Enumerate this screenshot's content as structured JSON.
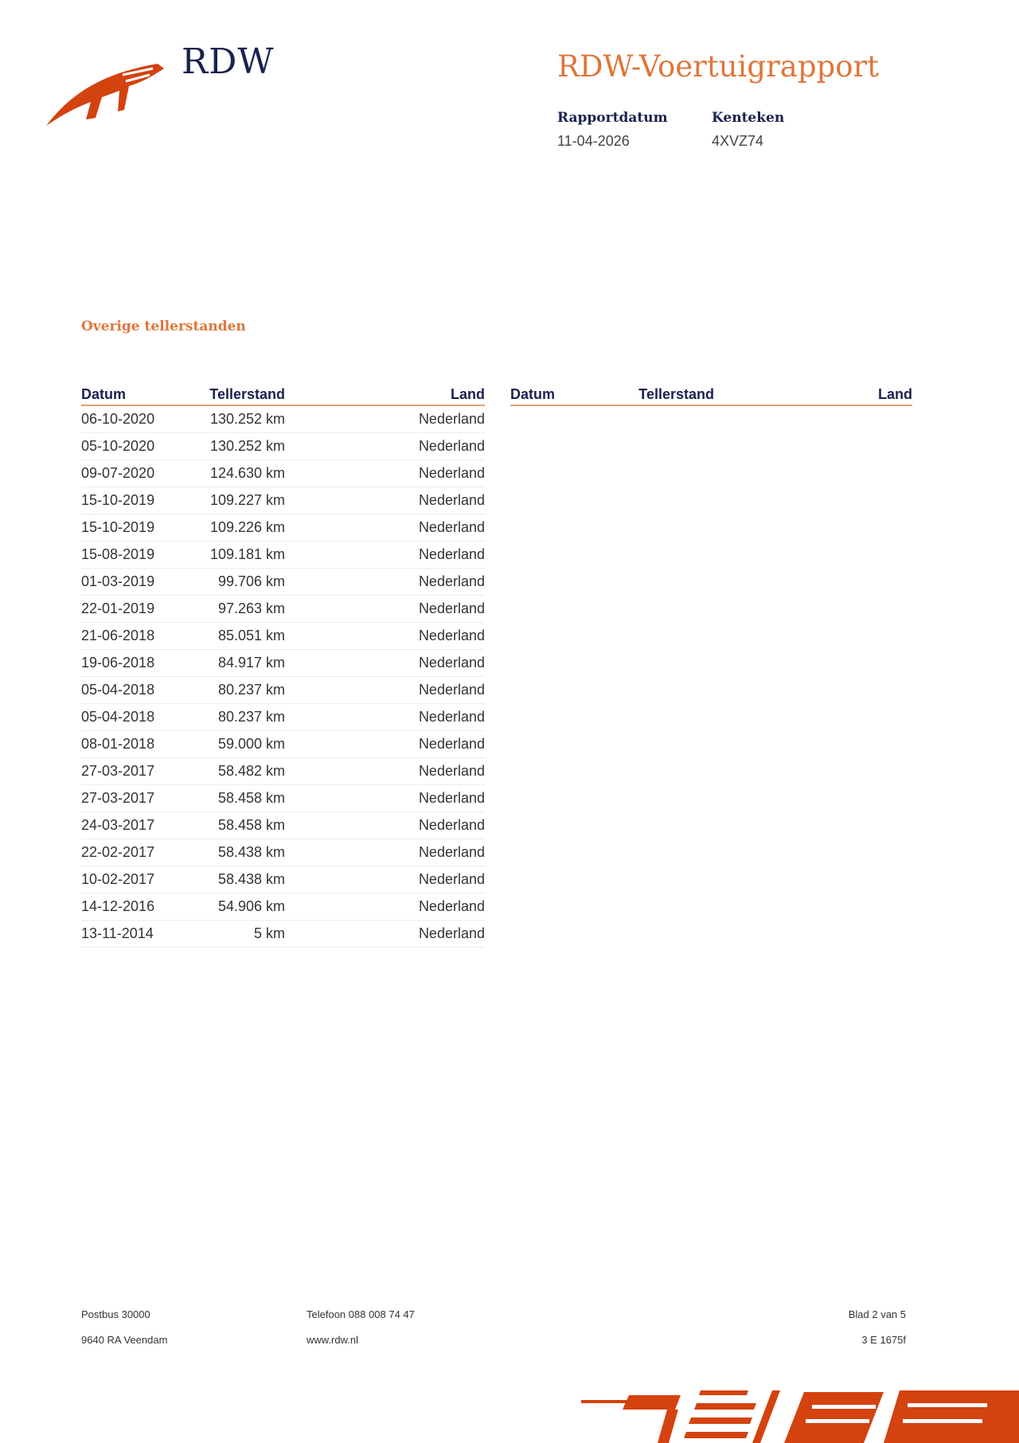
{
  "header": {
    "logo_text": "RDW",
    "title": "RDW-Voertuigrapport",
    "meta": [
      {
        "label": "Rapportdatum",
        "value": "11-04-2026"
      },
      {
        "label": "Kenteken",
        "value": "4XVZ74"
      }
    ]
  },
  "section_title": "Overige tellerstanden",
  "columns": [
    "Datum",
    "Tellerstand",
    "Land"
  ],
  "rows": [
    [
      "06-10-2020",
      "130.252 km",
      "Nederland"
    ],
    [
      "05-10-2020",
      "130.252 km",
      "Nederland"
    ],
    [
      "09-07-2020",
      "124.630 km",
      "Nederland"
    ],
    [
      "15-10-2019",
      "109.227 km",
      "Nederland"
    ],
    [
      "15-10-2019",
      "109.226 km",
      "Nederland"
    ],
    [
      "15-08-2019",
      "109.181 km",
      "Nederland"
    ],
    [
      "01-03-2019",
      "99.706 km",
      "Nederland"
    ],
    [
      "22-01-2019",
      "97.263 km",
      "Nederland"
    ],
    [
      "21-06-2018",
      "85.051 km",
      "Nederland"
    ],
    [
      "19-06-2018",
      "84.917 km",
      "Nederland"
    ],
    [
      "05-04-2018",
      "80.237 km",
      "Nederland"
    ],
    [
      "05-04-2018",
      "80.237 km",
      "Nederland"
    ],
    [
      "08-01-2018",
      "59.000 km",
      "Nederland"
    ],
    [
      "27-03-2017",
      "58.482 km",
      "Nederland"
    ],
    [
      "27-03-2017",
      "58.458 km",
      "Nederland"
    ],
    [
      "24-03-2017",
      "58.458 km",
      "Nederland"
    ],
    [
      "22-02-2017",
      "58.438 km",
      "Nederland"
    ],
    [
      "10-02-2017",
      "58.438 km",
      "Nederland"
    ],
    [
      "14-12-2016",
      "54.906 km",
      "Nederland"
    ],
    [
      "13-11-2014",
      "5 km",
      "Nederland"
    ]
  ],
  "footer": {
    "address1": "Postbus 30000",
    "address2": "9640 RA Veendam",
    "phone": "Telefoon 088 008 74 47",
    "web": "www.rdw.nl",
    "page": "Blad 2 van 5",
    "code": "3 E 1675f"
  },
  "colors": {
    "accent": "#e0763a",
    "logo": "#d4420f",
    "navy": "#1b2250"
  }
}
